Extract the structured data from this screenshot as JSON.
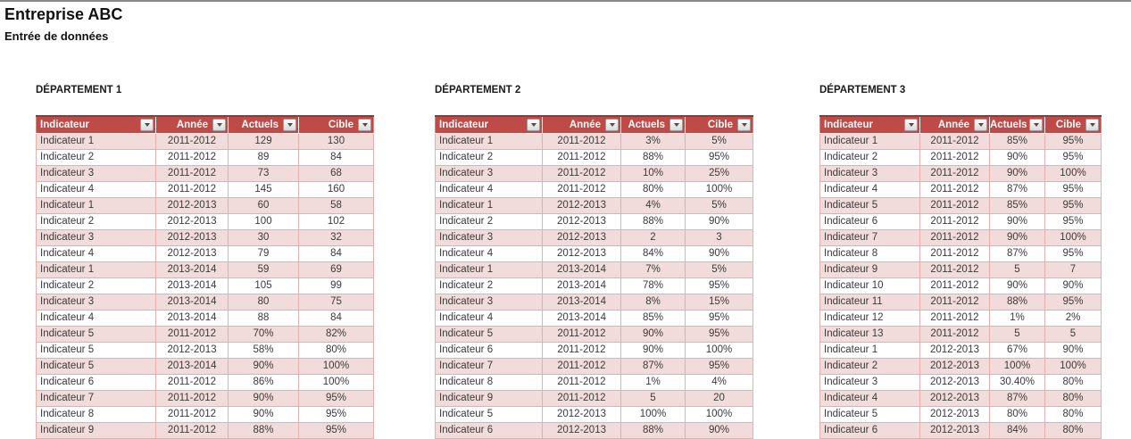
{
  "title": "Entreprise ABC",
  "subtitle": "Entrée de données",
  "colors": {
    "header_bg": "#be4b48",
    "header_top_border": "#953734",
    "band_row": "#f2dcdb",
    "grid_border": "#e3aeac",
    "header_text": "#ffffff"
  },
  "filter_icon": "chevron-down-icon",
  "tables": [
    {
      "label": "DÉPARTEMENT 1",
      "headers": [
        "Indicateur",
        "Année",
        "Actuels",
        "Cible"
      ],
      "rows": [
        [
          "Indicateur 1",
          "2011-2012",
          "129",
          "130"
        ],
        [
          "Indicateur 2",
          "2011-2012",
          "89",
          "84"
        ],
        [
          "Indicateur 3",
          "2011-2012",
          "73",
          "68"
        ],
        [
          "Indicateur 4",
          "2011-2012",
          "145",
          "160"
        ],
        [
          "Indicateur 1",
          "2012-2013",
          "60",
          "58"
        ],
        [
          "Indicateur 2",
          "2012-2013",
          "100",
          "102"
        ],
        [
          "Indicateur 3",
          "2012-2013",
          "30",
          "32"
        ],
        [
          "Indicateur 4",
          "2012-2013",
          "79",
          "84"
        ],
        [
          "Indicateur 1",
          "2013-2014",
          "59",
          "69"
        ],
        [
          "Indicateur 2",
          "2013-2014",
          "105",
          "99"
        ],
        [
          "Indicateur 3",
          "2013-2014",
          "80",
          "75"
        ],
        [
          "Indicateur 4",
          "2013-2014",
          "88",
          "84"
        ],
        [
          "Indicateur 5",
          "2011-2012",
          "70%",
          "82%"
        ],
        [
          "Indicateur 5",
          "2012-2013",
          "58%",
          "80%"
        ],
        [
          "Indicateur 5",
          "2013-2014",
          "90%",
          "100%"
        ],
        [
          "Indicateur 6",
          "2011-2012",
          "86%",
          "100%"
        ],
        [
          "Indicateur 7",
          "2011-2012",
          "90%",
          "95%"
        ],
        [
          "Indicateur 8",
          "2011-2012",
          "90%",
          "95%"
        ],
        [
          "Indicateur 9",
          "2011-2012",
          "88%",
          "95%"
        ]
      ]
    },
    {
      "label": "DÉPARTEMENT 2",
      "headers": [
        "Indicateur",
        "Année",
        "Actuels",
        "Cible"
      ],
      "rows": [
        [
          "Indicateur 1",
          "2011-2012",
          "3%",
          "5%"
        ],
        [
          "Indicateur 2",
          "2011-2012",
          "88%",
          "95%"
        ],
        [
          "Indicateur 3",
          "2011-2012",
          "10%",
          "25%"
        ],
        [
          "Indicateur 4",
          "2011-2012",
          "80%",
          "100%"
        ],
        [
          "Indicateur 1",
          "2012-2013",
          "4%",
          "5%"
        ],
        [
          "Indicateur 2",
          "2012-2013",
          "88%",
          "90%"
        ],
        [
          "Indicateur 3",
          "2012-2013",
          "2",
          "3"
        ],
        [
          "Indicateur 4",
          "2012-2013",
          "84%",
          "90%"
        ],
        [
          "Indicateur 1",
          "2013-2014",
          "7%",
          "5%"
        ],
        [
          "Indicateur 2",
          "2013-2014",
          "78%",
          "95%"
        ],
        [
          "Indicateur 3",
          "2013-2014",
          "8%",
          "15%"
        ],
        [
          "Indicateur 4",
          "2013-2014",
          "85%",
          "95%"
        ],
        [
          "Indicateur 5",
          "2011-2012",
          "90%",
          "95%"
        ],
        [
          "Indicateur 6",
          "2011-2012",
          "90%",
          "100%"
        ],
        [
          "Indicateur 7",
          "2011-2012",
          "87%",
          "95%"
        ],
        [
          "Indicateur 8",
          "2011-2012",
          "1%",
          "4%"
        ],
        [
          "Indicateur 9",
          "2011-2012",
          "5",
          "20"
        ],
        [
          "Indicateur 5",
          "2012-2013",
          "100%",
          "100%"
        ],
        [
          "Indicateur 6",
          "2012-2013",
          "88%",
          "90%"
        ]
      ]
    },
    {
      "label": "DÉPARTEMENT 3",
      "headers": [
        "Indicateur",
        "Année",
        "Actuels",
        "Cible"
      ],
      "rows": [
        [
          "Indicateur 1",
          "2011-2012",
          "85%",
          "95%"
        ],
        [
          "Indicateur 2",
          "2011-2012",
          "90%",
          "95%"
        ],
        [
          "Indicateur 3",
          "2011-2012",
          "90%",
          "100%"
        ],
        [
          "Indicateur 4",
          "2011-2012",
          "87%",
          "95%"
        ],
        [
          "Indicateur 5",
          "2011-2012",
          "85%",
          "95%"
        ],
        [
          "Indicateur 6",
          "2011-2012",
          "90%",
          "95%"
        ],
        [
          "Indicateur 7",
          "2011-2012",
          "90%",
          "100%"
        ],
        [
          "Indicateur 8",
          "2011-2012",
          "87%",
          "95%"
        ],
        [
          "Indicateur 9",
          "2011-2012",
          "5",
          "7"
        ],
        [
          "Indicateur 10",
          "2011-2012",
          "90%",
          "90%"
        ],
        [
          "Indicateur 11",
          "2011-2012",
          "88%",
          "95%"
        ],
        [
          "Indicateur 12",
          "2011-2012",
          "1%",
          "2%"
        ],
        [
          "Indicateur 13",
          "2011-2012",
          "5",
          "5"
        ],
        [
          "Indicateur 1",
          "2012-2013",
          "67%",
          "90%"
        ],
        [
          "Indicateur 2",
          "2012-2013",
          "100%",
          "100%"
        ],
        [
          "Indicateur 3",
          "2012-2013",
          "30.40%",
          "80%"
        ],
        [
          "Indicateur 4",
          "2012-2013",
          "87%",
          "80%"
        ],
        [
          "Indicateur 5",
          "2012-2013",
          "80%",
          "80%"
        ],
        [
          "Indicateur 6",
          "2012-2013",
          "84%",
          "80%"
        ]
      ]
    }
  ]
}
